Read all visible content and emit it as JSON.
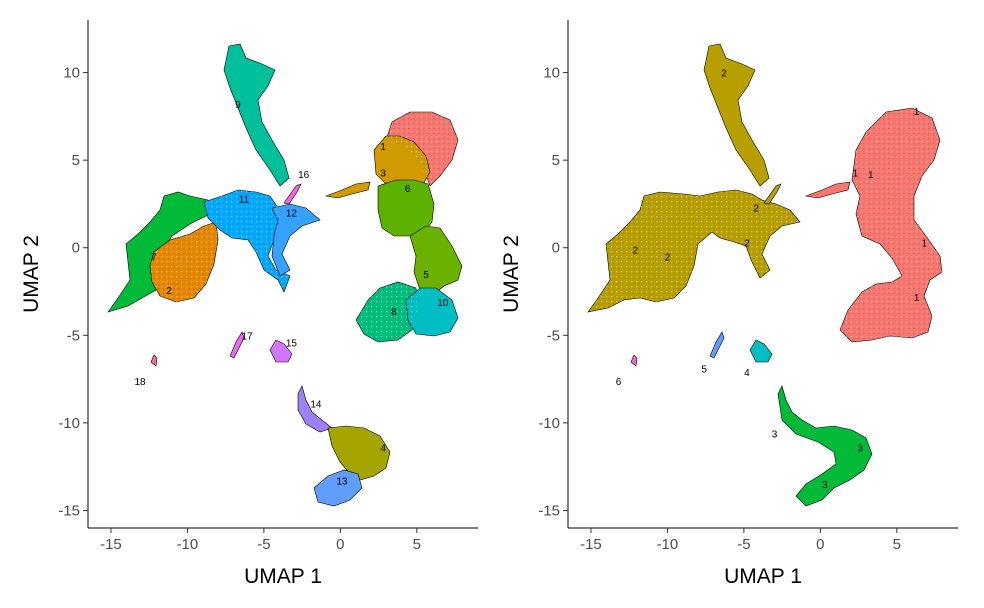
{
  "chart_data": [
    {
      "type": "scatter",
      "title": "",
      "xlabel": "UMAP 1",
      "ylabel": "UMAP 2",
      "xlim": [
        -16.5,
        9
      ],
      "ylim": [
        -16,
        13
      ],
      "xticks": [
        -15,
        -10,
        -5,
        0,
        5
      ],
      "yticks": [
        -15,
        -10,
        -5,
        0,
        5,
        10
      ],
      "xtick_labels": [
        "-15",
        "-10",
        "-5",
        "0",
        "5"
      ],
      "ytick_labels": [
        "-15",
        "-10",
        "-5",
        "0",
        "5",
        "10"
      ],
      "legend": "none",
      "clusters": [
        {
          "label": "1",
          "color": "#F8766D",
          "label_pos": [
            2.8,
            5.8
          ]
        },
        {
          "label": "2",
          "color": "#E58700",
          "label_pos": [
            -11.2,
            -2.4
          ]
        },
        {
          "label": "3",
          "color": "#D09A00",
          "label_pos": [
            2.8,
            4.3
          ]
        },
        {
          "label": "4",
          "color": "#A5A500",
          "label_pos": [
            2.8,
            -11.4
          ]
        },
        {
          "label": "5",
          "color": "#6BB100",
          "label_pos": [
            5.6,
            -1.5
          ]
        },
        {
          "label": "6",
          "color": "#5DB200",
          "label_pos": [
            4.4,
            3.4
          ]
        },
        {
          "label": "7",
          "color": "#00BA38",
          "label_pos": [
            -12.2,
            -0.5
          ]
        },
        {
          "label": "8",
          "color": "#00BF7D",
          "label_pos": [
            3.5,
            -3.6
          ]
        },
        {
          "label": "9",
          "color": "#00BF9B",
          "label_pos": [
            -6.7,
            8.2
          ]
        },
        {
          "label": "10",
          "color": "#00BFC4",
          "label_pos": [
            6.7,
            -3.1
          ]
        },
        {
          "label": "11",
          "color": "#00A9FF",
          "label_pos": [
            -6.3,
            2.8
          ]
        },
        {
          "label": "12",
          "color": "#35A2FF",
          "label_pos": [
            -3.2,
            2.0
          ]
        },
        {
          "label": "13",
          "color": "#619CFF",
          "label_pos": [
            0.1,
            -13.3
          ]
        },
        {
          "label": "14",
          "color": "#9E82F5",
          "label_pos": [
            -1.6,
            -8.9
          ]
        },
        {
          "label": "15",
          "color": "#D575FE",
          "label_pos": [
            -3.2,
            -5.4
          ]
        },
        {
          "label": "16",
          "color": "#F564E3",
          "label_pos": [
            -2.4,
            4.2
          ]
        },
        {
          "label": "17",
          "color": "#E76BF3",
          "label_pos": [
            -6.1,
            -5.0
          ]
        },
        {
          "label": "18",
          "color": "#FF6C91",
          "label_pos": [
            -13.1,
            -7.6
          ]
        }
      ]
    },
    {
      "type": "scatter",
      "title": "",
      "xlabel": "UMAP 1",
      "ylabel": "UMAP 2",
      "xlim": [
        -16.5,
        9
      ],
      "ylim": [
        -16,
        13
      ],
      "xticks": [
        -15,
        -10,
        -5,
        0,
        5
      ],
      "yticks": [
        -15,
        -10,
        -5,
        0,
        5,
        10
      ],
      "xtick_labels": [
        "-15",
        "-10",
        "-5",
        "0",
        "5"
      ],
      "ytick_labels": [
        "-15",
        "-10",
        "-5",
        "0",
        "5",
        "10"
      ],
      "legend": "none",
      "clusters": [
        {
          "label": "1",
          "color": "#F8766D",
          "label_pos": [
            3.3,
            4.2
          ]
        },
        {
          "label": "2",
          "color": "#B79F00",
          "label_pos": [
            -10.0,
            -0.5
          ]
        },
        {
          "label": "3",
          "color": "#00BA38",
          "label_pos": [
            -3.0,
            -10.6
          ]
        },
        {
          "label": "4",
          "color": "#00BFC4",
          "label_pos": [
            -4.8,
            -7.1
          ]
        },
        {
          "label": "5",
          "color": "#619CFF",
          "label_pos": [
            -7.6,
            -6.9
          ]
        },
        {
          "label": "6",
          "color": "#F564E3",
          "label_pos": [
            -13.2,
            -7.6
          ]
        }
      ]
    }
  ]
}
